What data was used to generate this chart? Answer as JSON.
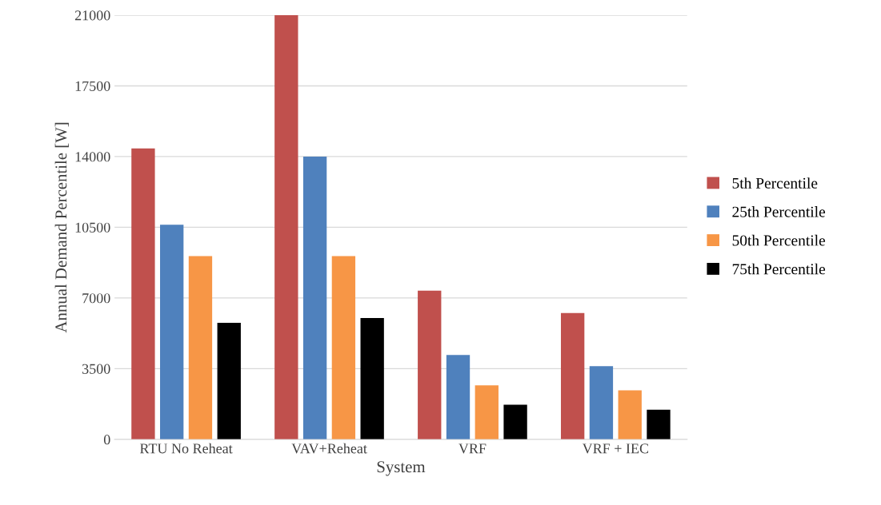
{
  "chart_data": {
    "type": "bar",
    "xlabel": "System",
    "ylabel": "Annual Demand Percentile [W]",
    "categories": [
      "RTU No Reheat",
      "VAV+Reheat",
      "VRF",
      "VRF + IEC"
    ],
    "series": [
      {
        "name": "5th Percentile",
        "color": "#c0504d",
        "values": [
          14400,
          21000,
          7360,
          6250
        ]
      },
      {
        "name": "25th Percentile",
        "color": "#4f81bd",
        "values": [
          10620,
          14000,
          4180,
          3620
        ]
      },
      {
        "name": "50th Percentile",
        "color": "#f79646",
        "values": [
          9070,
          9070,
          2670,
          2430
        ]
      },
      {
        "name": "75th Percentile",
        "color": "#000000",
        "values": [
          5770,
          6010,
          1710,
          1470
        ]
      }
    ],
    "ylim": [
      0,
      21000
    ],
    "yticks": [
      0,
      3500,
      7000,
      10500,
      14000,
      17500,
      21000
    ],
    "grid": "y",
    "legend": "right"
  }
}
